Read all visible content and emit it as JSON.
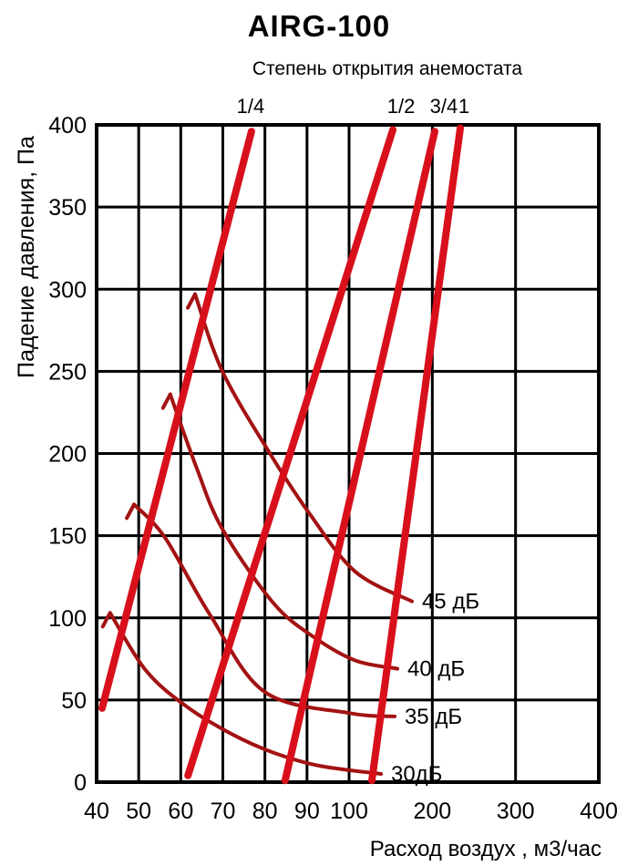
{
  "header": {
    "title": "AIRG-100",
    "subtitle": "Степень открытия анемостата"
  },
  "chart_data": {
    "type": "line",
    "title": "AIRG-100",
    "subtitle": "Степень открытия анемостата",
    "xlabel": "Расход воздух , м3/час",
    "ylabel": "Падение давления, Па",
    "x_scale": "segmented-linear: 40→100 step 10 on left part, 100→400 step 100 on right part",
    "x_ticks": [
      40,
      50,
      60,
      70,
      80,
      90,
      100,
      200,
      300,
      400
    ],
    "y_ticks": [
      0,
      50,
      100,
      150,
      200,
      250,
      300,
      350,
      400
    ],
    "xlim": [
      40,
      400
    ],
    "ylim": [
      0,
      400
    ],
    "grid": true,
    "legend_position": "inline-labels",
    "colors": {
      "opening_lines": "#d8101c",
      "noise_curves": "#a31212",
      "grid": "#000000",
      "background": "#ffffff"
    },
    "opening_series": [
      {
        "name": "1/4",
        "points": [
          [
            41.3,
            45
          ],
          [
            76.8,
            396
          ]
        ]
      },
      {
        "name": "1/2",
        "points": [
          [
            61.7,
            4
          ],
          [
            152.6,
            397
          ]
        ]
      },
      {
        "name": "3/4",
        "points": [
          [
            84.8,
            1
          ],
          [
            202.9,
            396
          ]
        ]
      },
      {
        "name": "1",
        "points": [
          [
            127.4,
            1
          ],
          [
            233.6,
            398
          ]
        ]
      }
    ],
    "noise_series": [
      {
        "name": "45 дБ",
        "points": [
          [
            63.4,
            297
          ],
          [
            69.9,
            250
          ],
          [
            81.2,
            200
          ],
          [
            90.7,
            163
          ],
          [
            107.7,
            128
          ],
          [
            175.5,
            110
          ]
        ]
      },
      {
        "name": "40 дБ",
        "points": [
          [
            57.5,
            236
          ],
          [
            63.8,
            191
          ],
          [
            69.9,
            154
          ],
          [
            82,
            109
          ],
          [
            91.8,
            88
          ],
          [
            107.7,
            74
          ],
          [
            158,
            69
          ]
        ]
      },
      {
        "name": "35 дБ",
        "points": [
          [
            48.9,
            169
          ],
          [
            56.2,
            149
          ],
          [
            66.9,
            102
          ],
          [
            79.9,
            55
          ],
          [
            100.4,
            42
          ],
          [
            154.7,
            40
          ]
        ]
      },
      {
        "name": "30дБ",
        "points": [
          [
            43.2,
            103
          ],
          [
            51.7,
            68
          ],
          [
            61.4,
            46
          ],
          [
            72.3,
            29
          ],
          [
            82,
            18
          ],
          [
            92.9,
            10
          ],
          [
            138.3,
            5
          ]
        ]
      }
    ]
  }
}
